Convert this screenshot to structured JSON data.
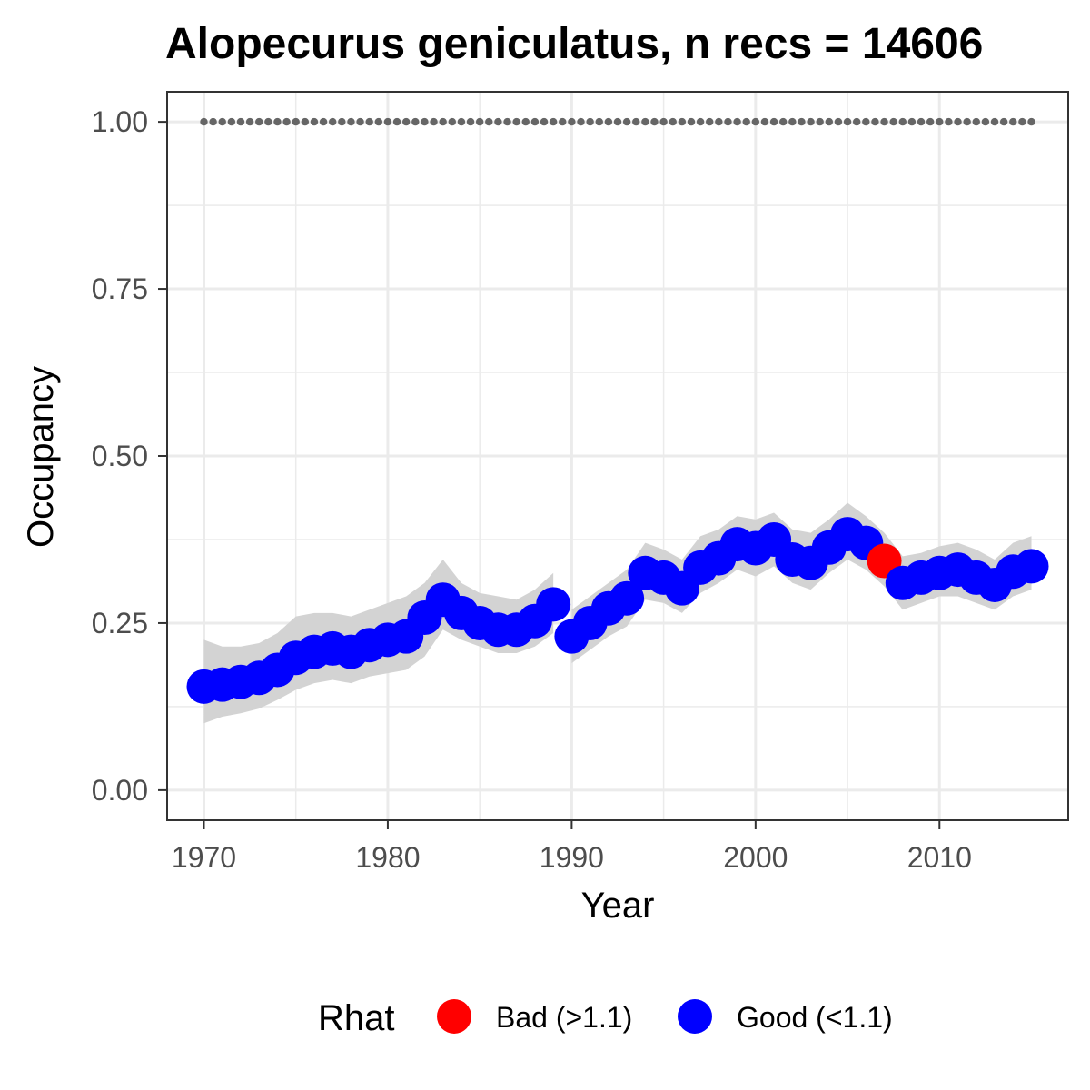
{
  "chart_data": {
    "type": "scatter",
    "title": "Alopecurus geniculatus, n recs = 14606",
    "xlabel": "Year",
    "ylabel": "Occupancy",
    "xlim": [
      1968,
      2017
    ],
    "ylim": [
      -0.045,
      1.045
    ],
    "x_ticks": [
      1970,
      1980,
      1990,
      2000,
      2010
    ],
    "x_tick_labels": [
      "1970",
      "1980",
      "1990",
      "2000",
      "2010"
    ],
    "y_ticks": [
      0,
      0.25,
      0.5,
      0.75,
      1.0
    ],
    "y_tick_labels": [
      "0.00",
      "0.25",
      "0.50",
      "0.75",
      "1.00"
    ],
    "grid": true,
    "legend": {
      "title": "Rhat",
      "position": "bottom",
      "entries": [
        {
          "label": "Bad (>1.1)",
          "color": "#ff0000"
        },
        {
          "label": "Good (<1.1)",
          "color": "#0000ff"
        }
      ]
    },
    "reference_line": {
      "y": 1.0,
      "style": "dotted",
      "color": "#666666",
      "x_range": [
        1970,
        2015
      ]
    },
    "ribbon_color": "#d3d3d3",
    "series": [
      {
        "x": [
          1970,
          1971,
          1972,
          1973,
          1974,
          1975,
          1976,
          1977,
          1978,
          1979,
          1980,
          1981,
          1982,
          1983,
          1984,
          1985,
          1986,
          1987,
          1988,
          1989
        ],
        "y": [
          0.155,
          0.158,
          0.162,
          0.168,
          0.18,
          0.198,
          0.207,
          0.212,
          0.207,
          0.217,
          0.225,
          0.23,
          0.258,
          0.285,
          0.265,
          0.25,
          0.24,
          0.24,
          0.253,
          0.278
        ],
        "lower": [
          0.1,
          0.11,
          0.115,
          0.122,
          0.135,
          0.15,
          0.16,
          0.165,
          0.16,
          0.17,
          0.175,
          0.18,
          0.2,
          0.24,
          0.225,
          0.215,
          0.205,
          0.205,
          0.215,
          0.235
        ],
        "upper": [
          0.225,
          0.215,
          0.215,
          0.22,
          0.235,
          0.26,
          0.265,
          0.265,
          0.26,
          0.27,
          0.28,
          0.29,
          0.31,
          0.345,
          0.31,
          0.295,
          0.29,
          0.285,
          0.3,
          0.325
        ],
        "rhat": [
          "good",
          "good",
          "good",
          "good",
          "good",
          "good",
          "good",
          "good",
          "good",
          "good",
          "good",
          "good",
          "good",
          "good",
          "good",
          "good",
          "good",
          "good",
          "good",
          "good"
        ]
      },
      {
        "x": [
          1990,
          1991,
          1992,
          1993,
          1994,
          1995,
          1996,
          1997,
          1998,
          1999,
          2000,
          2001,
          2002,
          2003,
          2004,
          2005,
          2006,
          2007,
          2008,
          2009,
          2010,
          2011,
          2012,
          2013,
          2014,
          2015
        ],
        "y": [
          0.23,
          0.25,
          0.272,
          0.287,
          0.325,
          0.318,
          0.302,
          0.333,
          0.347,
          0.368,
          0.362,
          0.375,
          0.345,
          0.34,
          0.363,
          0.383,
          0.37,
          0.343,
          0.31,
          0.318,
          0.325,
          0.33,
          0.318,
          0.307,
          0.327,
          0.335
        ],
        "lower": [
          0.19,
          0.21,
          0.23,
          0.245,
          0.285,
          0.28,
          0.265,
          0.295,
          0.31,
          0.33,
          0.32,
          0.335,
          0.31,
          0.3,
          0.325,
          0.345,
          0.33,
          0.305,
          0.27,
          0.28,
          0.29,
          0.29,
          0.28,
          0.27,
          0.29,
          0.3
        ],
        "upper": [
          0.27,
          0.29,
          0.31,
          0.33,
          0.37,
          0.36,
          0.345,
          0.38,
          0.39,
          0.41,
          0.405,
          0.415,
          0.39,
          0.385,
          0.405,
          0.43,
          0.41,
          0.385,
          0.35,
          0.355,
          0.365,
          0.37,
          0.36,
          0.345,
          0.37,
          0.38
        ],
        "rhat": [
          "good",
          "good",
          "good",
          "good",
          "good",
          "good",
          "good",
          "good",
          "good",
          "good",
          "good",
          "good",
          "good",
          "good",
          "good",
          "good",
          "good",
          "bad",
          "good",
          "good",
          "good",
          "good",
          "good",
          "good",
          "good",
          "good"
        ]
      }
    ]
  }
}
